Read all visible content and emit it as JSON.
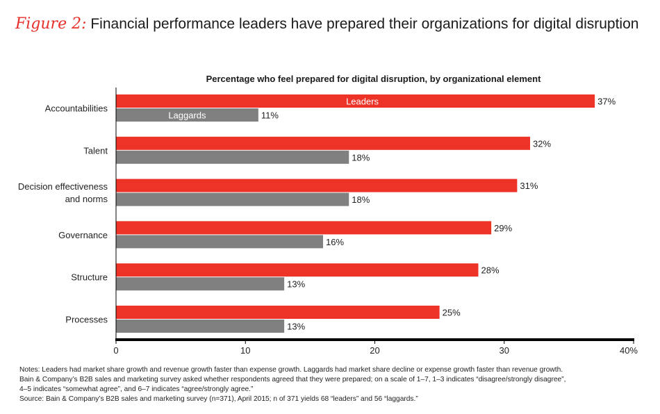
{
  "figure_label": "Figure 2:",
  "title": "Financial performance leaders have prepared their organizations for digital disruption",
  "colors": {
    "leaders": "#ed3327",
    "laggards": "#808080",
    "axis": "#000000",
    "accent": "#e8302a"
  },
  "chart_data": {
    "type": "bar",
    "orientation": "horizontal",
    "title": "Percentage who feel prepared for digital disruption, by organizational element",
    "categories": [
      [
        "Accountabilities"
      ],
      [
        "Talent"
      ],
      [
        "Decision effectiveness",
        "and norms"
      ],
      [
        "Governance"
      ],
      [
        "Structure"
      ],
      [
        "Processes"
      ]
    ],
    "series": [
      {
        "name": "Leaders",
        "values": [
          37,
          32,
          31,
          29,
          28,
          25
        ]
      },
      {
        "name": "Laggards",
        "values": [
          11,
          18,
          18,
          16,
          13,
          13
        ]
      }
    ],
    "value_suffix": "%",
    "xlim": [
      0,
      40
    ],
    "xticks": [
      "0",
      "10",
      "20",
      "30",
      "40%"
    ],
    "xticks_values": [
      0,
      10,
      20,
      30,
      40
    ],
    "xlabel": "",
    "ylabel": "",
    "grid": false,
    "legend": "inside first category bars"
  },
  "notes": [
    "Notes: Leaders had market share growth and revenue growth faster than expense growth. Laggards had market share decline or expense growth faster than revenue growth.",
    "Bain & Company’s B2B sales and marketing survey asked whether respondents agreed that they were prepared; on a scale of 1–7, 1–3 indicates “disagree/strongly disagree”,",
    "4–5 indicates “somewhat agree”, and 6–7 indicates “agree/strongly agree.”",
    "Source: Bain & Company’s B2B sales and marketing survey (n=371), April 2015; n of 371 yields 68 “leaders” and 56 “laggards.”"
  ]
}
